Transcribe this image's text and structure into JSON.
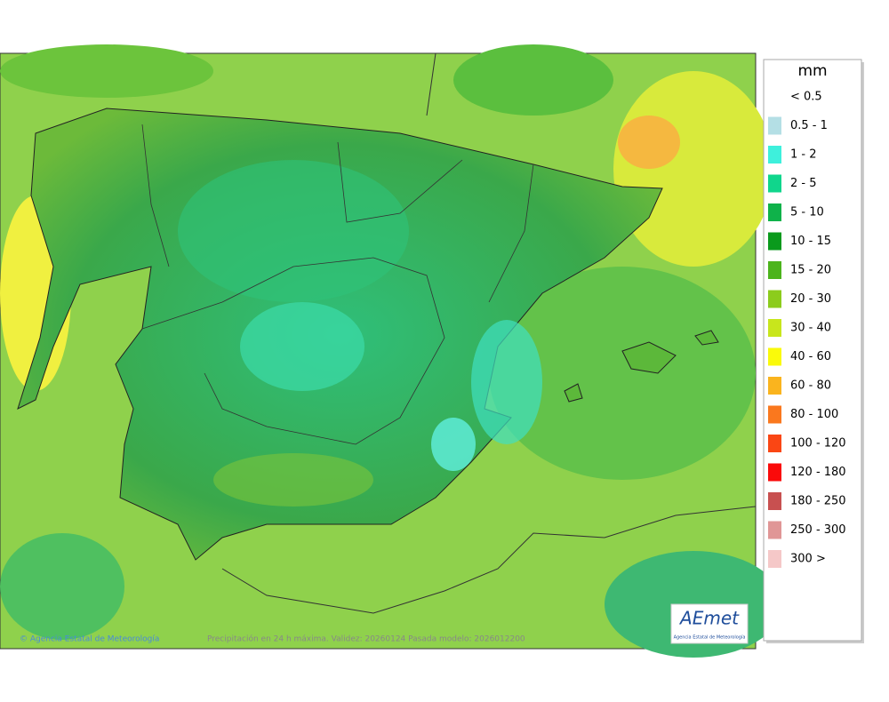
{
  "legend": {
    "title": "mm",
    "items": [
      {
        "label": "< 0.5",
        "color": "#ffffff"
      },
      {
        "label": "0.5 - 1",
        "color": "#b4dfe5"
      },
      {
        "label": "1 - 2",
        "color": "#3ef0dc"
      },
      {
        "label": "2 - 5",
        "color": "#10d68c"
      },
      {
        "label": "5 - 10",
        "color": "#0fb24a"
      },
      {
        "label": "10 - 15",
        "color": "#0a9a1c"
      },
      {
        "label": "15 - 20",
        "color": "#4cb41c"
      },
      {
        "label": "20 - 30",
        "color": "#8ccc1c"
      },
      {
        "label": "30 - 40",
        "color": "#c8e61c"
      },
      {
        "label": "40 - 60",
        "color": "#fafa0a"
      },
      {
        "label": "60 - 80",
        "color": "#fab41e"
      },
      {
        "label": "80 - 100",
        "color": "#fa781e"
      },
      {
        "label": "100 - 120",
        "color": "#fa4614"
      },
      {
        "label": "120 - 180",
        "color": "#fa0a0a"
      },
      {
        "label": "180 - 250",
        "color": "#c85050"
      },
      {
        "label": "250 - 300",
        "color": "#e09696"
      },
      {
        "label": "300 >",
        "color": "#f5c8c8"
      }
    ]
  },
  "footer": {
    "copyright": "© Agencia Estatal de Meteorología",
    "caption": "Precipitación en 24 h máxima. Validez: 20260124 Pasada modelo: 2026012200"
  },
  "logo": {
    "name": "AEmet",
    "subtitle": "Agencia Estatal de Meteorología"
  }
}
